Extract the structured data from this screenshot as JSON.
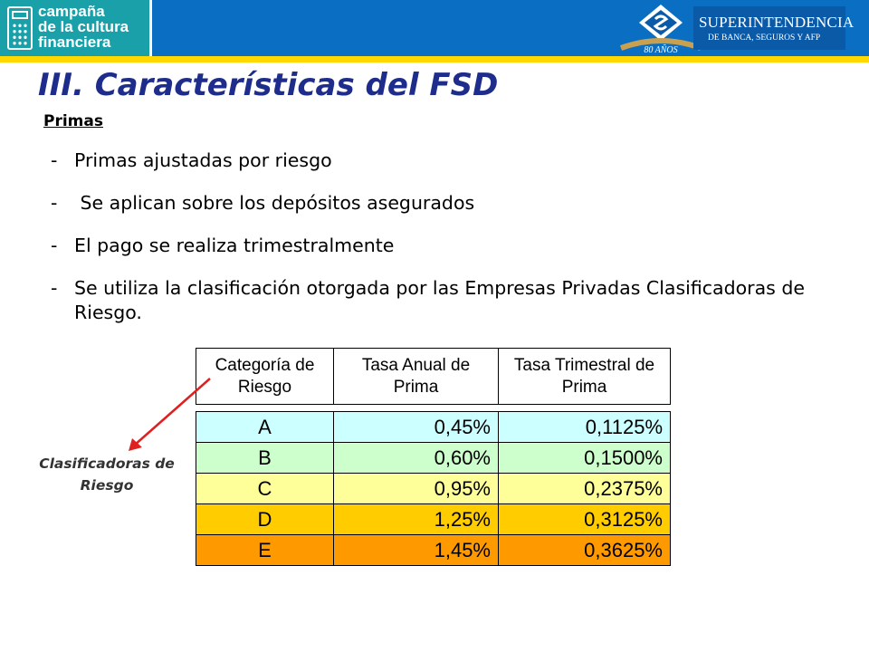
{
  "header": {
    "campaign_line1": "campaña",
    "campaign_line2": "de la cultura",
    "campaign_line3": "financiera",
    "logo_line1": "SUPERINTENDENCIA",
    "logo_line2": "DE BANCA, SEGUROS Y AFP",
    "logo_anniversary": "80 AÑOS",
    "band_color": "#0a6fc2",
    "accent_color": "#ffd800"
  },
  "title": "III. Características del FSD",
  "subhead": "Primas",
  "bullets": [
    "Primas ajustadas por riesgo",
    " Se aplican sobre los depósitos asegurados",
    "El pago se realiza trimestralmente",
    "Se utiliza la clasificación otorgada por las Empresas Privadas Clasificadoras de Riesgo."
  ],
  "table": {
    "headers": [
      "Categoría de Riesgo",
      "Tasa Anual de Prima",
      "Tasa Trimestral de Prima"
    ],
    "rows": [
      {
        "category": "A",
        "annual": "0,45%",
        "quarterly": "0,1125%",
        "color": "#ccffff"
      },
      {
        "category": "B",
        "annual": "0,60%",
        "quarterly": "0,1500%",
        "color": "#ccffcc"
      },
      {
        "category": "C",
        "annual": "0,95%",
        "quarterly": "0,2375%",
        "color": "#ffff99"
      },
      {
        "category": "D",
        "annual": "1,25%",
        "quarterly": "0,3125%",
        "color": "#ffcc00"
      },
      {
        "category": "E",
        "annual": "1,45%",
        "quarterly": "0,3625%",
        "color": "#ff9900"
      }
    ]
  },
  "annotation": {
    "line1": "Clasificadoras de",
    "line2": "Riesgo",
    "arrow_color": "#e02020"
  }
}
